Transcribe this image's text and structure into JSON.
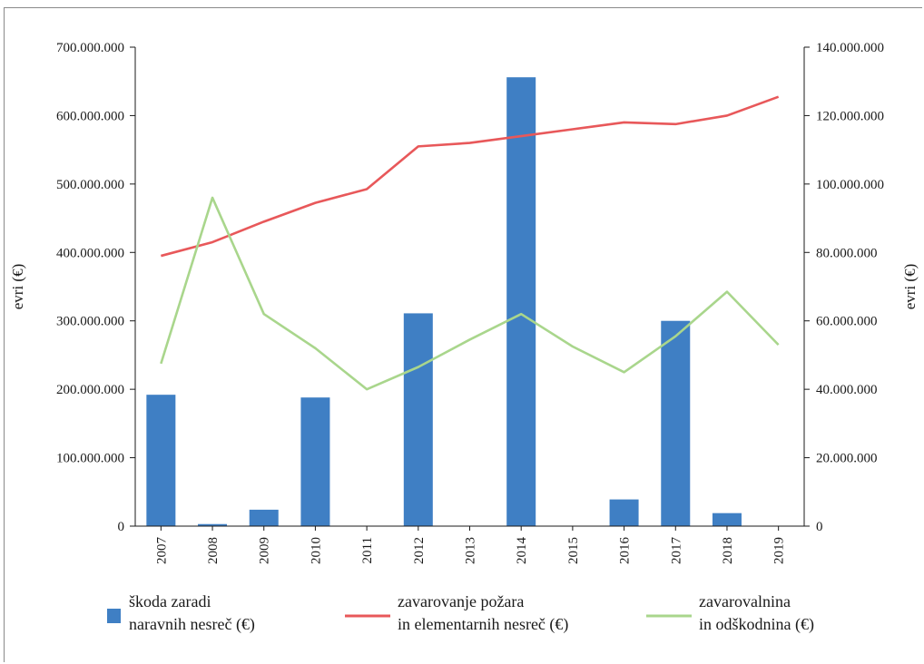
{
  "chart_data": {
    "type": "bar",
    "x_categories": [
      "2007",
      "2008",
      "2009",
      "2010",
      "2011",
      "2012",
      "2013",
      "2014",
      "2015",
      "2016",
      "2017",
      "2018",
      "2019"
    ],
    "left_axis": {
      "label": "evri (€)",
      "ylim": [
        0,
        700000000
      ],
      "ticks": [
        0,
        100000000,
        200000000,
        300000000,
        400000000,
        500000000,
        600000000,
        700000000
      ],
      "tick_labels": [
        "0",
        "100.000.000",
        "200.000.000",
        "300.000.000",
        "400.000.000",
        "500.000.000",
        "600.000.000",
        "700.000.000"
      ]
    },
    "right_axis": {
      "label": "evri (€)",
      "ylim": [
        0,
        140000000
      ],
      "ticks": [
        0,
        20000000,
        40000000,
        60000000,
        80000000,
        100000000,
        120000000,
        140000000
      ],
      "tick_labels": [
        "0",
        "20.000.000",
        "40.000.000",
        "60.000.000",
        "80.000.000",
        "100.000.000",
        "120.000.000",
        "140.000.000"
      ]
    },
    "series": [
      {
        "name_lines": [
          "škoda zaradi",
          "naravnih nesreč (€)"
        ],
        "type": "bar",
        "axis": "left",
        "color": "#3f7fc4",
        "values": [
          192000000,
          3000000,
          24000000,
          188000000,
          0,
          311000000,
          0,
          656000000,
          0,
          39000000,
          300000000,
          19000000,
          0
        ]
      },
      {
        "name_lines": [
          "zavarovanje požara",
          "in elementarnih nesreč (€)"
        ],
        "type": "line",
        "axis": "right",
        "color": "#e8585a",
        "values": [
          79000000,
          83000000,
          89000000,
          94500000,
          98500000,
          111000000,
          112000000,
          114000000,
          116000000,
          118000000,
          117500000,
          120000000,
          125500000
        ]
      },
      {
        "name_lines": [
          "zavarovalnina",
          "in odškodnina (€)"
        ],
        "type": "line",
        "axis": "right",
        "color": "#a9d68c",
        "values": [
          47500000,
          96000000,
          62000000,
          52000000,
          40000000,
          46500000,
          54500000,
          62000000,
          52500000,
          45000000,
          55500000,
          68500000,
          53000000
        ]
      }
    ],
    "grid": false,
    "legend_position": "bottom"
  }
}
